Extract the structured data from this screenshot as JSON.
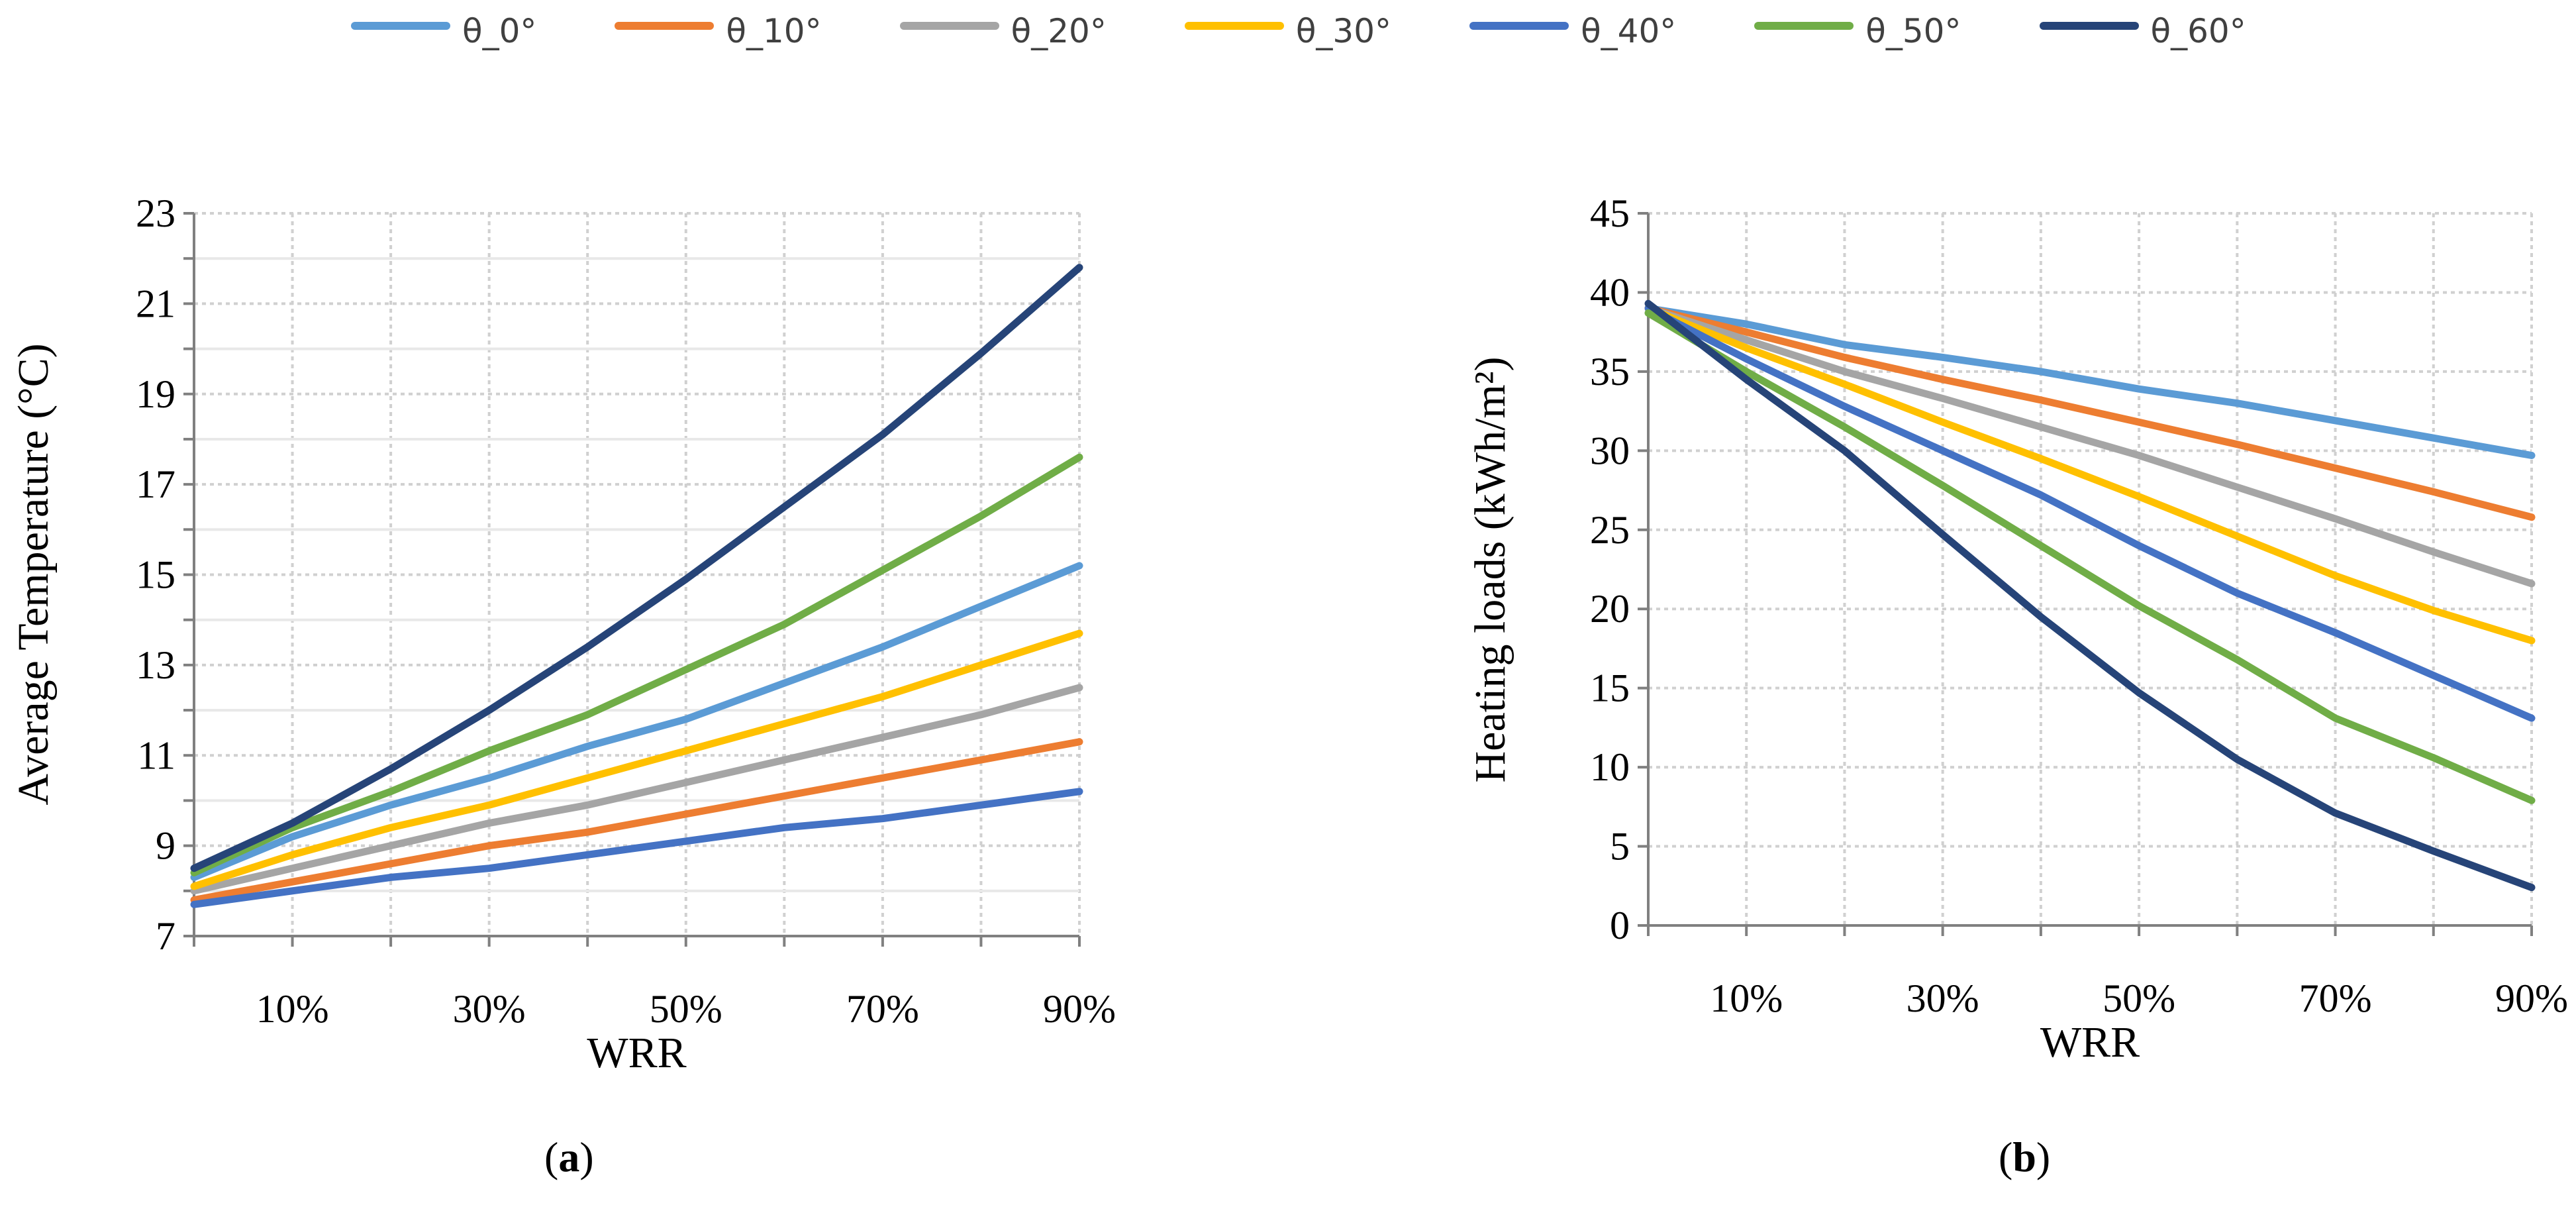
{
  "legend": [
    {
      "label": "θ_0°",
      "color": "#5B9BD5"
    },
    {
      "label": "θ_10°",
      "color": "#ED7D31"
    },
    {
      "label": "θ_20°",
      "color": "#A5A5A5"
    },
    {
      "label": "θ_30°",
      "color": "#FFC000"
    },
    {
      "label": "θ_40°",
      "color": "#4472C4"
    },
    {
      "label": "θ_50°",
      "color": "#70AD47"
    },
    {
      "label": "θ_60°",
      "color": "#264478"
    }
  ],
  "captions": {
    "a_open": "(",
    "a_letter": "a",
    "a_close": ")",
    "b_open": "(",
    "b_letter": "b",
    "b_close": ")"
  },
  "chart_data": [
    {
      "type": "line",
      "panel": "a",
      "title": "",
      "xlabel": "WRR",
      "ylabel": "Average Temperature (°C)",
      "x": [
        0,
        10,
        20,
        30,
        40,
        50,
        60,
        70,
        80,
        90
      ],
      "xlim": [
        0,
        90
      ],
      "xtick_values": [
        10,
        30,
        50,
        70,
        90
      ],
      "xtick_labels": [
        "10%",
        "30%",
        "50%",
        "70%",
        "90%"
      ],
      "ylim": [
        7,
        23
      ],
      "yticks": [
        7,
        9,
        11,
        13,
        15,
        17,
        19,
        21,
        23
      ],
      "grid": true,
      "series": [
        {
          "name": "θ_0°",
          "values": [
            8.3,
            9.2,
            9.9,
            10.5,
            11.2,
            11.8,
            12.6,
            13.4,
            14.3,
            15.2
          ]
        },
        {
          "name": "θ_10°",
          "values": [
            7.8,
            8.2,
            8.6,
            9.0,
            9.3,
            9.7,
            10.1,
            10.5,
            10.9,
            11.3
          ]
        },
        {
          "name": "θ_20°",
          "values": [
            8.0,
            8.5,
            9.0,
            9.5,
            9.9,
            10.4,
            10.9,
            11.4,
            11.9,
            12.5
          ]
        },
        {
          "name": "θ_30°",
          "values": [
            8.1,
            8.8,
            9.4,
            9.9,
            10.5,
            11.1,
            11.7,
            12.3,
            13.0,
            13.7
          ]
        },
        {
          "name": "θ_40°",
          "values": [
            7.7,
            8.0,
            8.3,
            8.5,
            8.8,
            9.1,
            9.4,
            9.6,
            9.9,
            10.2
          ]
        },
        {
          "name": "θ_50°",
          "values": [
            8.4,
            9.4,
            10.2,
            11.1,
            11.9,
            12.9,
            13.9,
            15.1,
            16.3,
            17.6
          ]
        },
        {
          "name": "θ_60°",
          "values": [
            8.5,
            9.5,
            10.7,
            12.0,
            13.4,
            14.9,
            16.5,
            18.1,
            19.9,
            21.8
          ]
        }
      ]
    },
    {
      "type": "line",
      "panel": "b",
      "title": "",
      "xlabel": "WRR",
      "ylabel": "Heating loads (kWh/m²)",
      "x": [
        0,
        10,
        20,
        30,
        40,
        50,
        60,
        70,
        80,
        90
      ],
      "xlim": [
        0,
        90
      ],
      "xtick_values": [
        10,
        30,
        50,
        70,
        90
      ],
      "xtick_labels": [
        "10%",
        "30%",
        "50%",
        "70%",
        "90%"
      ],
      "ylim": [
        0,
        45
      ],
      "yticks": [
        0,
        5,
        10,
        15,
        20,
        25,
        30,
        35,
        40,
        45
      ],
      "grid": true,
      "series": [
        {
          "name": "θ_0°",
          "values": [
            39.0,
            38.0,
            36.7,
            35.9,
            35.0,
            33.9,
            33.0,
            31.9,
            30.8,
            29.7
          ]
        },
        {
          "name": "θ_10°",
          "values": [
            39.0,
            37.5,
            35.9,
            34.5,
            33.2,
            31.8,
            30.4,
            28.9,
            27.4,
            25.8
          ]
        },
        {
          "name": "θ_20°",
          "values": [
            39.0,
            37.0,
            35.0,
            33.3,
            31.5,
            29.7,
            27.7,
            25.7,
            23.6,
            21.6
          ]
        },
        {
          "name": "θ_30°",
          "values": [
            39.0,
            36.5,
            34.2,
            31.8,
            29.5,
            27.1,
            24.6,
            22.1,
            19.9,
            18.0
          ]
        },
        {
          "name": "θ_40°",
          "values": [
            39.0,
            35.8,
            32.8,
            30.0,
            27.2,
            24.0,
            21.0,
            18.5,
            15.8,
            13.1
          ]
        },
        {
          "name": "θ_50°",
          "values": [
            38.7,
            35.0,
            31.5,
            27.8,
            24.0,
            20.2,
            16.8,
            13.1,
            10.6,
            7.9
          ]
        },
        {
          "name": "θ_60°",
          "values": [
            39.3,
            34.5,
            30.0,
            24.7,
            19.5,
            14.7,
            10.5,
            7.1,
            4.7,
            2.4
          ]
        }
      ]
    }
  ]
}
